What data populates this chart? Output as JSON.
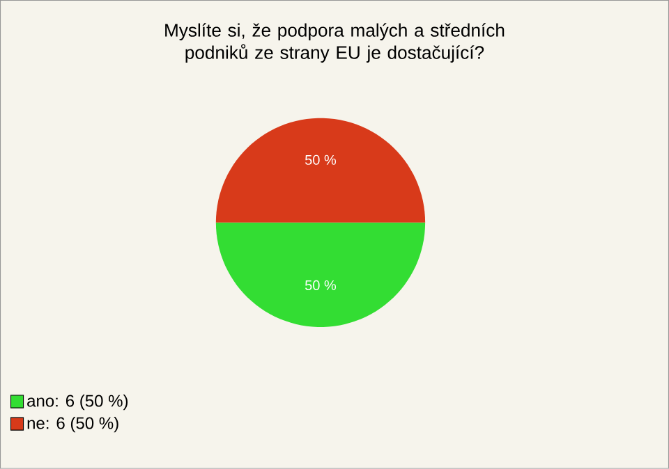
{
  "chart_data": {
    "type": "pie",
    "title": "Myslíte si, že podpora malých a středních podniků ze strany EU je dostačující?",
    "categories": [
      "ano: 6 (50 %)",
      "ne: 6 (50 %)"
    ],
    "values": [
      50,
      50
    ],
    "colors": [
      "#33dd33",
      "#d83a1a"
    ],
    "value_labels": [
      "50 %",
      "50 %"
    ],
    "legend": "bottom left"
  }
}
